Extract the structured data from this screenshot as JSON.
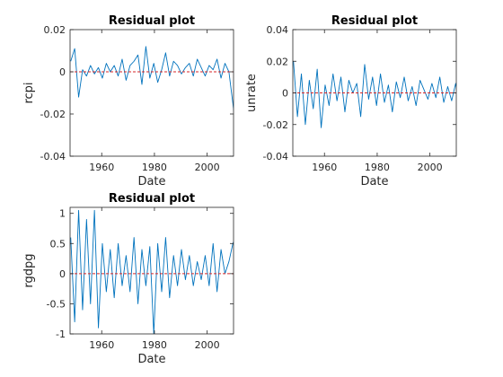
{
  "chart_data": [
    {
      "type": "line",
      "title": "Residual plot",
      "xlabel": "Date",
      "ylabel": "rcpi",
      "xlim": [
        1948,
        2010
      ],
      "ylim": [
        -0.04,
        0.02
      ],
      "xticks": [
        1960,
        1980,
        2000
      ],
      "xtick_labels": [
        "1960",
        "1980",
        "2000"
      ],
      "yticks": [
        -0.04,
        -0.02,
        0,
        0.02
      ],
      "ytick_labels": [
        "-0.04",
        "-0.02",
        "0",
        "0.02"
      ],
      "zero_line": true,
      "series": [
        {
          "color": "#0072BD",
          "x_start": 1948.25,
          "x_step": 1.5,
          "values": [
            0.005,
            0.011,
            -0.012,
            0.001,
            -0.002,
            0.003,
            -0.001,
            0.002,
            -0.003,
            0.004,
            0.0,
            0.003,
            -0.002,
            0.006,
            -0.004,
            0.003,
            0.005,
            0.008,
            -0.006,
            0.012,
            -0.003,
            0.004,
            -0.005,
            0.001,
            0.009,
            -0.002,
            0.005,
            0.003,
            -0.001,
            0.002,
            0.004,
            -0.002,
            0.006,
            0.002,
            -0.002,
            0.003,
            0.001,
            0.006,
            -0.003,
            0.004,
            0.0,
            -0.015,
            -0.03
          ]
        }
      ]
    },
    {
      "type": "line",
      "title": "Residual plot",
      "xlabel": "Date",
      "ylabel": "unrate",
      "xlim": [
        1948,
        2010
      ],
      "ylim": [
        -0.04,
        0.04
      ],
      "xticks": [
        1960,
        1980,
        2000
      ],
      "xtick_labels": [
        "1960",
        "1980",
        "2000"
      ],
      "yticks": [
        -0.04,
        -0.02,
        0,
        0.02,
        0.04
      ],
      "ytick_labels": [
        "-0.04",
        "-0.02",
        "0",
        "0.02",
        "0.04"
      ],
      "zero_line": true,
      "series": [
        {
          "color": "#0072BD",
          "x_start": 1948.25,
          "x_step": 1.5,
          "values": [
            0.02,
            -0.015,
            0.012,
            -0.02,
            0.008,
            -0.01,
            0.015,
            -0.022,
            0.005,
            -0.008,
            0.012,
            -0.005,
            0.01,
            -0.012,
            0.008,
            0.0,
            0.006,
            -0.015,
            0.018,
            -0.004,
            0.01,
            -0.008,
            0.012,
            -0.006,
            0.005,
            -0.012,
            0.007,
            -0.003,
            0.01,
            -0.005,
            0.004,
            -0.008,
            0.008,
            0.002,
            -0.004,
            0.006,
            -0.003,
            0.01,
            -0.006,
            0.004,
            -0.005,
            0.006,
            -0.01
          ]
        }
      ]
    },
    {
      "type": "line",
      "title": "Residual plot",
      "xlabel": "Date",
      "ylabel": "rgdpg",
      "xlim": [
        1948,
        2010
      ],
      "ylim": [
        -1,
        1.1
      ],
      "xticks": [
        1960,
        1980,
        2000
      ],
      "xtick_labels": [
        "1960",
        "1980",
        "2000"
      ],
      "yticks": [
        -1,
        -0.5,
        0,
        0.5,
        1
      ],
      "ytick_labels": [
        "-1",
        "-0.5",
        "0",
        "0.5",
        "1"
      ],
      "zero_line": true,
      "series": [
        {
          "color": "#0072BD",
          "x_start": 1948.25,
          "x_step": 1.5,
          "values": [
            0.6,
            -0.8,
            1.05,
            -0.6,
            0.9,
            -0.5,
            1.05,
            -0.9,
            0.5,
            -0.3,
            0.4,
            -0.4,
            0.5,
            -0.2,
            0.3,
            -0.3,
            0.6,
            -0.5,
            0.4,
            -0.2,
            0.45,
            -1.0,
            0.5,
            -0.3,
            0.6,
            -0.4,
            0.3,
            -0.2,
            0.4,
            -0.1,
            0.3,
            -0.2,
            0.2,
            -0.1,
            0.3,
            -0.2,
            0.5,
            -0.3,
            0.4,
            0.0,
            0.2,
            0.5,
            0.65
          ]
        }
      ]
    }
  ]
}
